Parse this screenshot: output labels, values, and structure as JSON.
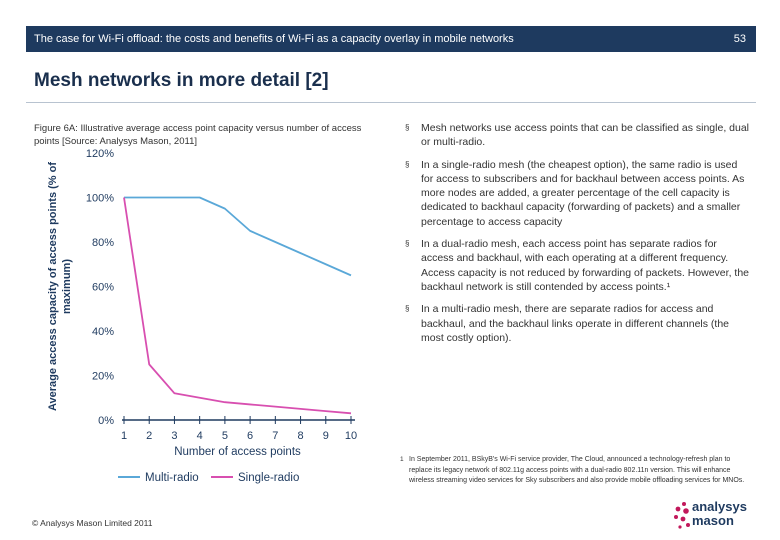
{
  "header": {
    "text": "The case for Wi-Fi offload: the costs and benefits of Wi-Fi as a capacity overlay in mobile networks",
    "page_number": "53"
  },
  "slide": {
    "title": "Mesh networks in more detail [2]"
  },
  "figure": {
    "caption": "Figure 6A: Illustrative average access point capacity versus number of access points [Source: Analysys Mason, 2011]"
  },
  "chart_data": {
    "type": "line",
    "title": "",
    "xlabel": "Number of access points",
    "ylabel": "Average access capacity of access points (% of maximum)",
    "x": [
      1,
      2,
      3,
      4,
      5,
      6,
      7,
      8,
      9,
      10
    ],
    "ylim": [
      0,
      120
    ],
    "yticks": [
      0,
      20,
      40,
      60,
      80,
      100,
      120
    ],
    "ytick_labels": [
      "0%",
      "20%",
      "40%",
      "60%",
      "80%",
      "100%",
      "120%"
    ],
    "legend_position": "bottom",
    "series": [
      {
        "name": "Multi-radio",
        "color": "#5aa8d8",
        "values": [
          100,
          100,
          100,
          100,
          95,
          85,
          80,
          75,
          70,
          65
        ]
      },
      {
        "name": "Single-radio",
        "color": "#d84fb0",
        "values": [
          100,
          25,
          12,
          10,
          8,
          7,
          6,
          5,
          4,
          3
        ]
      }
    ]
  },
  "bullets": [
    "Mesh networks use access points that can be classified as single, dual or multi-radio.",
    "In a single-radio mesh (the cheapest option), the same radio is used for access to subscribers and for backhaul between access points. As more nodes are added, a greater percentage of the cell capacity is dedicated to backhaul capacity (forwarding of packets) and a smaller percentage to access capacity",
    "In a dual-radio mesh, each access point has separate radios for access and backhaul, with each operating at a different frequency. Access capacity is not reduced by forwarding of packets. However, the backhaul network is still contended by access points.¹",
    "In a multi-radio mesh, there are separate radios for access and backhaul, and the backhaul links operate in different channels (the most costly option)."
  ],
  "bullet_marker": "§",
  "footnote": {
    "number": "1",
    "text": "In September 2011, BSkyB's Wi-Fi service provider, The Cloud, announced a technology-refresh plan to replace its legacy network of 802.11g access points with a dual-radio 802.11n version. This will enhance wireless streaming video services for Sky subscribers and also provide mobile offloading services for MNOs."
  },
  "footer": {
    "copyright": "© Analysys Mason Limited 2011"
  },
  "logo": {
    "line1": "analysys",
    "line2": "mason",
    "color": "#c2185b"
  }
}
